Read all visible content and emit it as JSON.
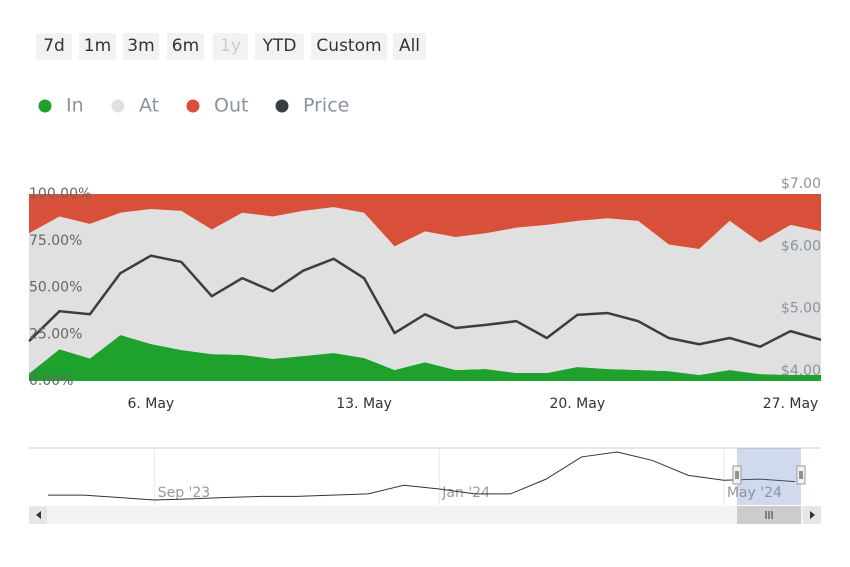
{
  "range_selector": {
    "buttons": [
      "7d",
      "1m",
      "3m",
      "6m",
      "1y",
      "YTD",
      "Custom",
      "All"
    ],
    "disabled": [
      "1y"
    ]
  },
  "chart_data": {
    "type": "area",
    "stacking": true,
    "categories": [
      null,
      null,
      null,
      null,
      "6. May",
      null,
      null,
      null,
      null,
      null,
      null,
      "13. May",
      null,
      null,
      null,
      null,
      null,
      null,
      "20. May",
      null,
      null,
      null,
      null,
      null,
      null,
      "27. May",
      null
    ],
    "ylim": [
      0,
      100
    ],
    "yticks": [
      {
        "value": 0,
        "label": "0.00%"
      },
      {
        "value": 25,
        "label": "25.00%"
      },
      {
        "value": 50,
        "label": "50.00%"
      },
      {
        "value": 75,
        "label": "75.00%"
      },
      {
        "value": 100,
        "label": "100.00%"
      }
    ],
    "y2lim": [
      3.84,
      6.84
    ],
    "y2ticks": [
      {
        "value": 4,
        "label": "$4.00"
      },
      {
        "value": 5,
        "label": "$5.00"
      },
      {
        "value": 6,
        "label": "$6.00"
      },
      {
        "value": 7,
        "label": "$7.00"
      }
    ],
    "series": [
      {
        "name": "In",
        "color": "#1fa12e",
        "values": [
          4,
          17,
          12,
          24.6,
          19.8,
          16.6,
          14.4,
          14,
          11.8,
          13.4,
          15,
          12.3,
          5.9,
          10,
          5.9,
          6.4,
          4.3,
          4.3,
          7.5,
          6.4,
          5.9,
          5.3,
          3.2,
          5.9,
          3.7,
          3.2,
          3.2
        ]
      },
      {
        "name": "At",
        "color": "#e0e0e0",
        "values": [
          75,
          71,
          72,
          65.4,
          72.2,
          74.4,
          66.6,
          76,
          76.2,
          77.6,
          78,
          77.7,
          66.1,
          70,
          71.1,
          72.6,
          77.7,
          79.2,
          78.1,
          80.6,
          79.7,
          67.7,
          67.4,
          79.7,
          70.3,
          80.3,
          76.8
        ]
      },
      {
        "name": "Out",
        "color": "#d9503a",
        "values": [
          21,
          12,
          16,
          10,
          8,
          9,
          19,
          10,
          12,
          9,
          7,
          10,
          28,
          20,
          23,
          21,
          18,
          16.5,
          14.4,
          13,
          14.4,
          27,
          29.4,
          14.4,
          26,
          16.5,
          20
        ]
      },
      {
        "name": "Price",
        "color": "#3a3d42",
        "type": "line",
        "axis": "y2",
        "values": [
          4.48,
          4.96,
          4.91,
          5.57,
          5.85,
          5.75,
          5.2,
          5.49,
          5.28,
          5.61,
          5.8,
          5.49,
          4.61,
          4.91,
          4.69,
          4.74,
          4.8,
          4.53,
          4.9,
          4.93,
          4.8,
          4.53,
          4.43,
          4.53,
          4.39,
          4.64,
          4.5
        ]
      }
    ]
  },
  "navigator": {
    "categories": [
      null,
      null,
      null,
      "Sep '23",
      null,
      null,
      null,
      null,
      null,
      null,
      null,
      "Jan '24",
      null,
      null,
      null,
      null,
      null,
      null,
      null,
      "May '24",
      null,
      null
    ],
    "color": "#333333",
    "values": [
      3.68,
      3.68,
      3.53,
      3.38,
      3.45,
      3.53,
      3.6,
      3.6,
      3.68,
      3.75,
      4.28,
      4.05,
      3.75,
      3.75,
      4.65,
      6.0,
      6.3,
      5.78,
      4.88,
      4.58,
      4.65,
      4.5
    ]
  }
}
